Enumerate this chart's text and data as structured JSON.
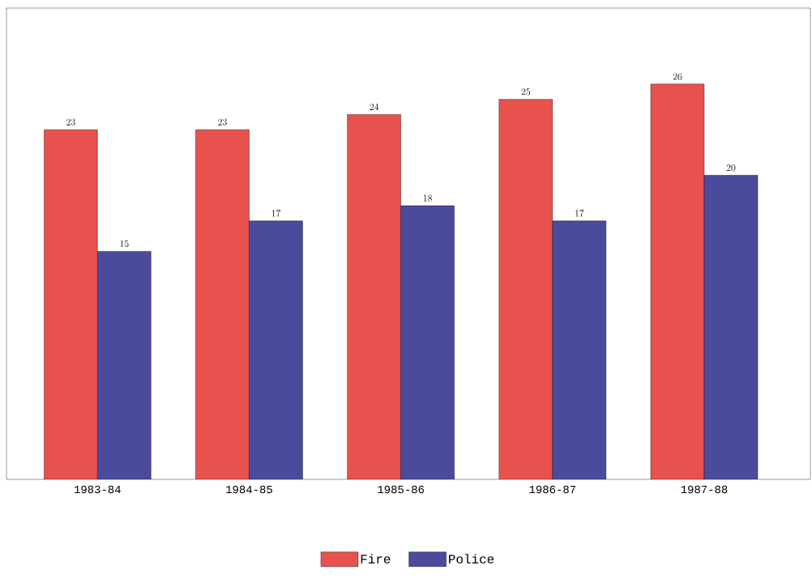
{
  "chart_data": {
    "type": "bar",
    "categories": [
      "1983-84",
      "1984-85",
      "1985-86",
      "1986-87",
      "1987-88"
    ],
    "series": [
      {
        "name": "Fire",
        "color": "#e8524e",
        "values": [
          23,
          23,
          24,
          25,
          26
        ]
      },
      {
        "name": "Police",
        "color": "#4b4b9e",
        "values": [
          15,
          17,
          18,
          17,
          20
        ]
      }
    ],
    "ylim": [
      0,
      31
    ],
    "data_labels": true,
    "legend": "bottom",
    "tick_labels": "x",
    "grid": false
  }
}
